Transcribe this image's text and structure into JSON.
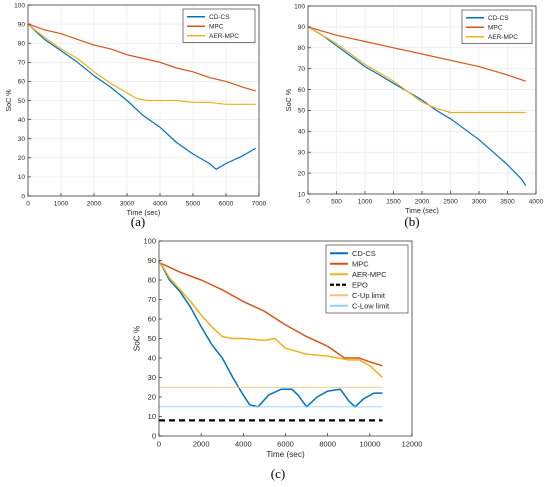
{
  "figure_captions": [
    "(a)",
    "(b)",
    "(c)"
  ],
  "colors": {
    "CD-CS": "#0072BD",
    "MPC": "#D95319",
    "AER-MPC": "#EDB120",
    "EPO": "#000000",
    "C-Up limit": "#F4C27A",
    "C-Low limit": "#8FD3F5"
  },
  "chart_data": [
    {
      "type": "line",
      "panel": "(a)",
      "xlabel": "Time (sec)",
      "ylabel": "SoC %",
      "xlim": [
        0,
        7000
      ],
      "ylim": [
        0,
        100
      ],
      "xticks": [
        0,
        1000,
        2000,
        3000,
        4000,
        5000,
        6000,
        7000
      ],
      "yticks": [
        0,
        10,
        20,
        30,
        40,
        50,
        60,
        70,
        80,
        90,
        100
      ],
      "grid": true,
      "legend_position": "top-right",
      "legend": [
        "CD-CS",
        "MPC",
        "AER-MPC"
      ],
      "series": [
        {
          "name": "CD-CS",
          "x": [
            0,
            500,
            1000,
            1500,
            2000,
            2500,
            3000,
            3500,
            4000,
            4500,
            5000,
            5500,
            5700,
            6000,
            6500,
            6900
          ],
          "y": [
            90,
            82,
            76,
            70,
            63,
            57,
            50,
            42,
            36,
            28,
            22,
            17,
            14,
            17,
            21,
            25
          ]
        },
        {
          "name": "MPC",
          "x": [
            0,
            500,
            1000,
            1500,
            2000,
            2500,
            3000,
            3500,
            4000,
            4500,
            5000,
            5500,
            6000,
            6500,
            6900
          ],
          "y": [
            90,
            87,
            85,
            82,
            79,
            77,
            74,
            72,
            70,
            67,
            65,
            62,
            60,
            57,
            55
          ]
        },
        {
          "name": "AER-MPC",
          "x": [
            0,
            500,
            1000,
            1500,
            2000,
            2500,
            3000,
            3300,
            3600,
            4000,
            4500,
            5000,
            5500,
            6000,
            6500,
            6900
          ],
          "y": [
            90,
            83,
            77,
            72,
            65,
            59,
            54,
            51,
            50,
            50,
            50,
            49,
            49,
            48,
            48,
            48
          ]
        }
      ]
    },
    {
      "type": "line",
      "panel": "(b)",
      "xlabel": "Time (sec)",
      "ylabel": "SoC %",
      "xlim": [
        0,
        4000
      ],
      "ylim": [
        10,
        100
      ],
      "xticks": [
        0,
        500,
        1000,
        1500,
        2000,
        2500,
        3000,
        3500,
        4000
      ],
      "yticks": [
        10,
        20,
        30,
        40,
        50,
        60,
        70,
        80,
        90,
        100
      ],
      "grid": true,
      "legend_position": "top-right",
      "legend": [
        "CD-CS",
        "MPC",
        "AER-MPC"
      ],
      "series": [
        {
          "name": "CD-CS",
          "x": [
            0,
            250,
            500,
            750,
            1000,
            1250,
            1500,
            1750,
            2000,
            2250,
            2500,
            2750,
            3000,
            3250,
            3500,
            3750,
            3820
          ],
          "y": [
            90,
            86,
            81,
            76,
            71,
            67,
            63,
            59,
            55,
            50,
            46,
            41,
            36,
            30,
            24,
            17,
            14
          ]
        },
        {
          "name": "MPC",
          "x": [
            0,
            500,
            1000,
            1500,
            2000,
            2500,
            3000,
            3500,
            3820
          ],
          "y": [
            90,
            86,
            83,
            80,
            77,
            74,
            71,
            67,
            64
          ]
        },
        {
          "name": "AER-MPC",
          "x": [
            0,
            250,
            500,
            750,
            1000,
            1250,
            1500,
            1750,
            2000,
            2250,
            2500,
            3000,
            3500,
            3820
          ],
          "y": [
            90,
            86,
            82,
            77,
            72,
            68,
            64,
            59,
            54,
            51,
            49,
            49,
            49,
            49
          ]
        }
      ]
    },
    {
      "type": "line",
      "panel": "(c)",
      "xlabel": "Time (sec)",
      "ylabel": "SoC %",
      "xlim": [
        0,
        12000
      ],
      "ylim": [
        0,
        100
      ],
      "xticks": [
        0,
        2000,
        4000,
        6000,
        8000,
        10000,
        12000
      ],
      "yticks": [
        0,
        10,
        20,
        30,
        40,
        50,
        60,
        70,
        80,
        90,
        100
      ],
      "grid": false,
      "legend_position": "top-right",
      "legend": [
        "CD-CS",
        "MPC",
        "AER-MPC",
        "EPO",
        "C-Up limit",
        "C-Low limit"
      ],
      "series": [
        {
          "name": "CD-CS",
          "x": [
            0,
            500,
            1000,
            1500,
            2000,
            2500,
            3000,
            3500,
            4000,
            4300,
            4700,
            5200,
            5800,
            6300,
            6600,
            7000,
            7500,
            8000,
            8600,
            9000,
            9300,
            9700,
            10200,
            10600
          ],
          "y": [
            90,
            80,
            74,
            66,
            56,
            47,
            40,
            30,
            21,
            16,
            15,
            21,
            24,
            24,
            21,
            15,
            20,
            23,
            24,
            18,
            15,
            19,
            22,
            22
          ]
        },
        {
          "name": "MPC",
          "x": [
            0,
            1000,
            2000,
            3000,
            4000,
            5000,
            6000,
            7000,
            8000,
            8800,
            9500,
            10000,
            10600
          ],
          "y": [
            89,
            84,
            80,
            75,
            69,
            64,
            57,
            51,
            46,
            40,
            40,
            38,
            36
          ]
        },
        {
          "name": "AER-MPC",
          "x": [
            0,
            500,
            1000,
            1500,
            2000,
            2500,
            3000,
            3500,
            4000,
            5000,
            5500,
            6000,
            7000,
            8000,
            9000,
            9500,
            10000,
            10600
          ],
          "y": [
            90,
            81,
            75,
            69,
            62,
            56,
            51,
            50,
            50,
            49,
            50,
            45,
            42,
            41,
            39,
            39,
            36,
            30
          ]
        },
        {
          "name": "EPO",
          "x": [
            0,
            10600
          ],
          "y": [
            8,
            8
          ],
          "style": "dashed"
        },
        {
          "name": "C-Up limit",
          "x": [
            0,
            10600
          ],
          "y": [
            25,
            25
          ]
        },
        {
          "name": "C-Low limit",
          "x": [
            0,
            10600
          ],
          "y": [
            15,
            15
          ]
        }
      ]
    }
  ]
}
